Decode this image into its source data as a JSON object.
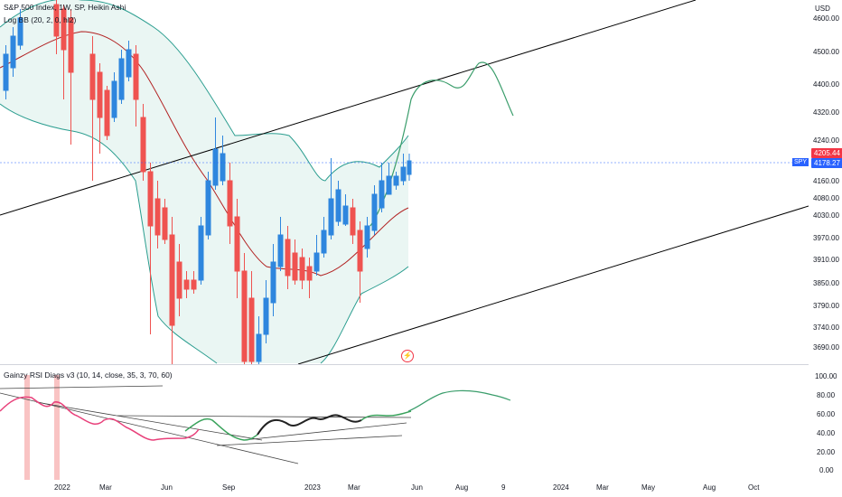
{
  "legend": {
    "main": "S&P 500 Index, 1W, SP, Heikin Ashi",
    "bb": "Log BB (20, 2, 0, hl2)",
    "rsi": "Gainzy RSI Diags v3 (10, 14, close, 35, 3, 70, 60)"
  },
  "price_axis": {
    "currency": "USD",
    "labels": [
      "4600.00",
      "4500.00",
      "4400.00",
      "4320.00",
      "4240.00",
      "4160.00",
      "4080.00",
      "4030.00",
      "3970.00",
      "3910.00",
      "3850.00",
      "3790.00",
      "3740.00",
      "3690.00"
    ],
    "last_price_tag": "4205.44",
    "current_price_tag": "4178.27",
    "symbol_tag": "SPY"
  },
  "rsi_axis": {
    "labels": [
      "100.00",
      "80.00",
      "60.00",
      "40.00",
      "20.00",
      "0.00"
    ]
  },
  "time_axis": {
    "labels": [
      "2022",
      "Mar",
      "Jun",
      "Sep",
      "2023",
      "Mar",
      "Jun",
      "Aug",
      "9",
      "2024",
      "Mar",
      "May",
      "Aug",
      "Oct"
    ]
  },
  "colors": {
    "up": "#2e86de",
    "down": "#ef5350",
    "bb_basis": "#b22222",
    "bb_band": "#2a9d8f",
    "bb_fill": "#e6f4f1",
    "trend": "#000000",
    "projection": "#3a9d6b",
    "rsi_pink": "#e8407a",
    "rsi_black": "#222222",
    "rsi_green": "#3aa35c",
    "alert": "#f23645",
    "tag_blue": "#2962ff",
    "tag_red": "#f23645"
  },
  "icons": {
    "alert": "lightning-icon"
  }
}
